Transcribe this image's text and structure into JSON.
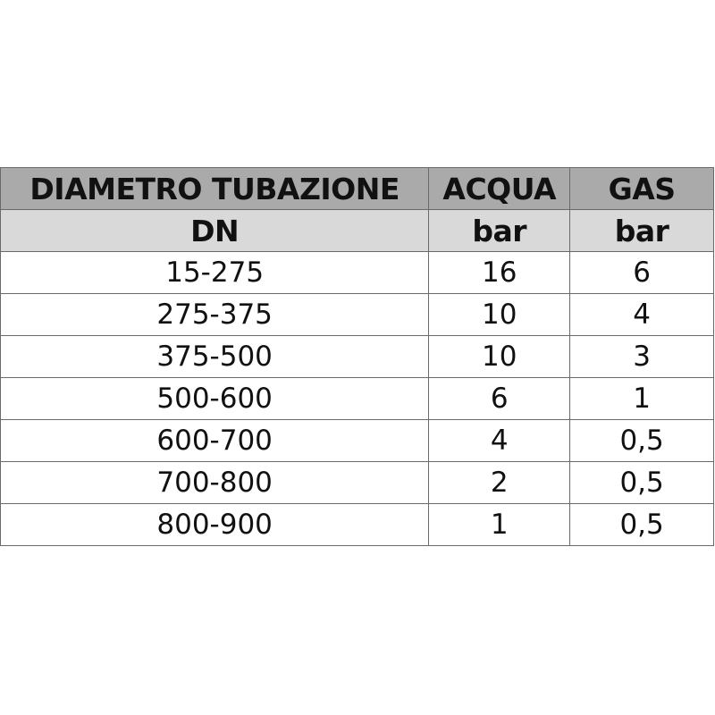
{
  "table": {
    "header_row1": [
      "DIAMETRO TUBAZIONE",
      "ACQUA",
      "GAS"
    ],
    "header_row2": [
      "DN",
      "bar",
      "bar"
    ],
    "rows": [
      [
        "15-275",
        "16",
        "6"
      ],
      [
        "275-375",
        "10",
        "4"
      ],
      [
        "375-500",
        "10",
        "3"
      ],
      [
        "500-600",
        "6",
        "1"
      ],
      [
        "600-700",
        "4",
        "0,5"
      ],
      [
        "700-800",
        "2",
        "0,5"
      ],
      [
        "800-900",
        "1",
        "0,5"
      ]
    ]
  },
  "colors": {
    "header_dark": "#aaaaaa",
    "header_light": "#d9d9d9",
    "border": "#6a6a6a"
  }
}
